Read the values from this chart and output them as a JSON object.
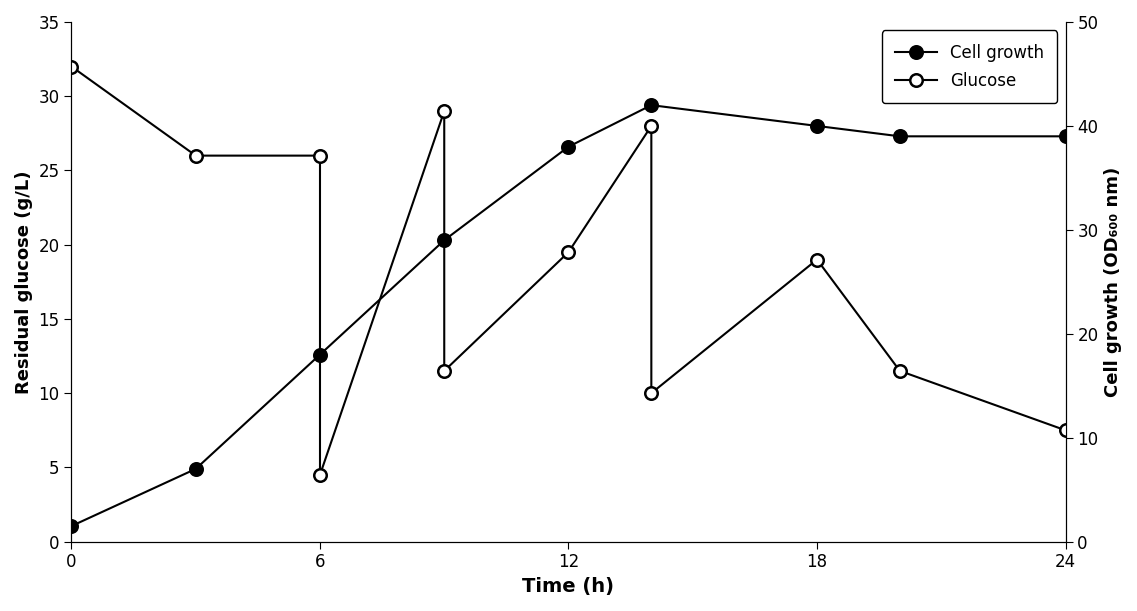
{
  "cell_growth_x": [
    0,
    3,
    6,
    9,
    12,
    14,
    18,
    20,
    24
  ],
  "cell_growth_y": [
    1.5,
    7,
    18,
    29,
    38,
    42,
    40,
    39,
    39
  ],
  "glucose_x": [
    0,
    3,
    6,
    6,
    9,
    9,
    12,
    14,
    14,
    18,
    20,
    24
  ],
  "glucose_y": [
    32,
    26,
    26,
    4.5,
    29,
    11.5,
    19.5,
    28,
    10,
    19,
    11.5,
    7.5
  ],
  "xlabel": "Time (h)",
  "ylabel_left": "Residual glucose (g/L)",
  "ylabel_right": "Cell growth (OD₆₀₀ nm)",
  "legend_cell": "Cell growth",
  "legend_glucose": "Glucose",
  "xlim": [
    0,
    24
  ],
  "ylim_left": [
    0,
    35
  ],
  "ylim_right": [
    0,
    50
  ],
  "xticks": [
    0,
    6,
    12,
    18,
    24
  ],
  "yticks_left": [
    0,
    5,
    10,
    15,
    20,
    25,
    30,
    35
  ],
  "yticks_right": [
    0,
    10,
    20,
    30,
    40,
    50
  ],
  "marker_size": 9,
  "linewidth": 1.5,
  "bg_color": "#ffffff"
}
